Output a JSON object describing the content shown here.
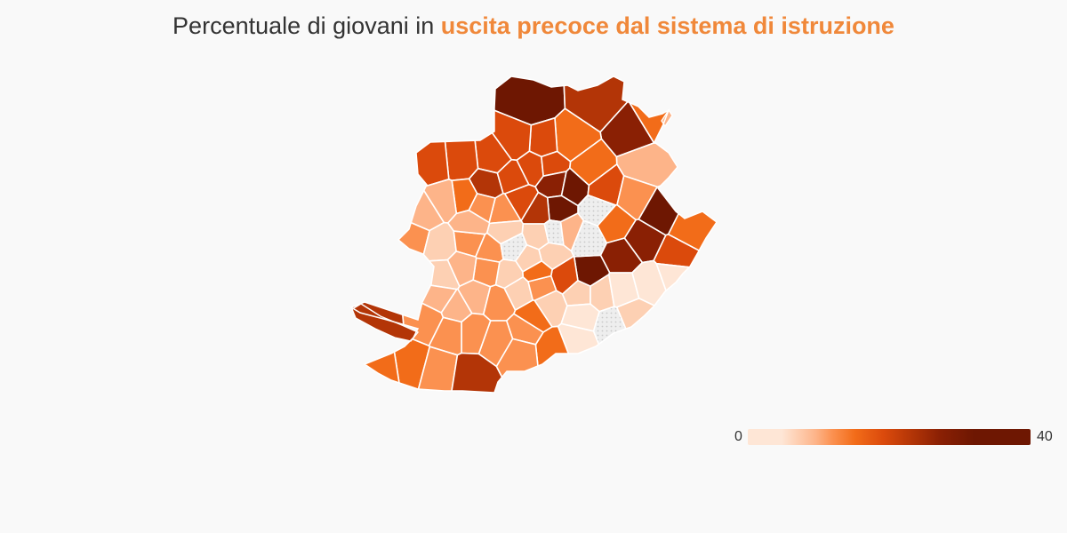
{
  "title": {
    "prefix": "Percentuale di giovani in",
    "highlight": "uscita precoce dal sistema di istruzione"
  },
  "colors": {
    "background": "#f9f9f9",
    "highlight": "#f0883a",
    "border": "#ffffff",
    "nodata": "#e3e3e3",
    "scale": [
      "#fee6d6",
      "#fdd0b3",
      "#fdb489",
      "#fb9150",
      "#f26c19",
      "#db4a0c",
      "#b33507",
      "#8a2004",
      "#6e1702"
    ]
  },
  "legend": {
    "min": "0",
    "max": "40",
    "min_value": 0,
    "max_value": 40
  }
}
